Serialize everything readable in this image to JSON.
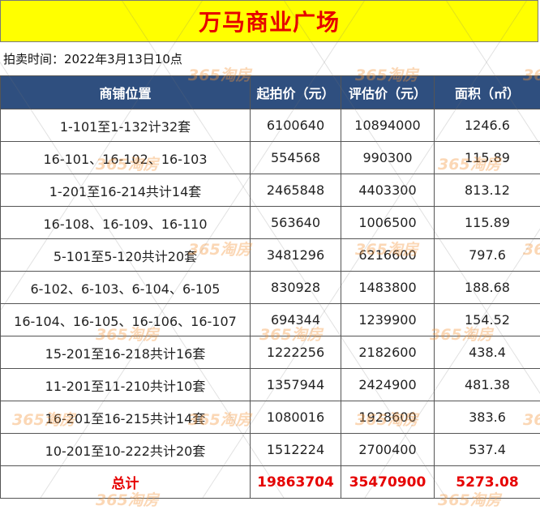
{
  "title": "万马商业广场",
  "auction_time": "拍卖时间：2022年3月13日10点",
  "columns": [
    "商铺位置",
    "起拍价（元）",
    "评估价（元）",
    "面积（㎡）"
  ],
  "rows": [
    [
      "1-101至1-132计32套",
      "6100640",
      "10894000",
      "1246.6"
    ],
    [
      "16-101、16-102、16-103",
      "554568",
      "990300",
      "115.89"
    ],
    [
      "1-201至16-214共计14套",
      "2465848",
      "4403300",
      "813.12"
    ],
    [
      "16-108、16-109、16-110",
      "563640",
      "1006500",
      "115.89"
    ],
    [
      "5-101至5-120共计20套",
      "3481296",
      "6216600",
      "797.6"
    ],
    [
      "6-102、6-103、6-104、6-105",
      "830928",
      "1483800",
      "188.68"
    ],
    [
      "16-104、16-105、16-106、16-107",
      "694344",
      "1239900",
      "154.52"
    ],
    [
      "15-201至16-218共计16套",
      "1222256",
      "2182600",
      "438.4"
    ],
    [
      "11-201至11-210共计10套",
      "1357944",
      "2424900",
      "481.38"
    ],
    [
      "16-201至16-215共计14套",
      "1080016",
      "1928600",
      "383.6"
    ],
    [
      "10-201至10-222共计20套",
      "1512224",
      "2700400",
      "537.4"
    ]
  ],
  "total": [
    "总计",
    "19863704",
    "35470900",
    "5273.08"
  ],
  "watermark": "365淘房",
  "colors": {
    "title_bg": "#ffff00",
    "title_text": "#e60000",
    "header_bg": "#2f4f7f",
    "total_text": "#e60000"
  }
}
